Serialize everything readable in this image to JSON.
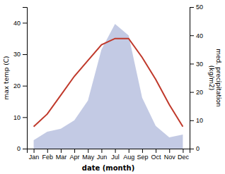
{
  "chart_data": {
    "type": "line",
    "categories": [
      "Jan",
      "Feb",
      "Mar",
      "Apr",
      "May",
      "Jun",
      "Jul",
      "Aug",
      "Sep",
      "Oct",
      "Nov",
      "Dec"
    ],
    "series": [
      {
        "type": "area",
        "axis": "y2",
        "color": "#aab4d8",
        "values": [
          3,
          6,
          7,
          10,
          17,
          35,
          44,
          40,
          18,
          8,
          4,
          5
        ]
      },
      {
        "type": "line",
        "color": "#c0392b",
        "values": [
          7,
          11,
          17,
          23,
          28,
          33,
          35,
          35,
          29,
          22,
          14,
          7
        ]
      }
    ],
    "xlabel": "date (month)",
    "ylabel": "max temp (C)",
    "y2label": "med. precipitation\n(kg/m2)",
    "ylim": [
      0,
      45
    ],
    "yticks": [
      0,
      10,
      20,
      30,
      40
    ],
    "y2lim": [
      0,
      50
    ],
    "y2ticks": [
      0,
      10,
      20,
      30,
      40,
      50
    ]
  }
}
